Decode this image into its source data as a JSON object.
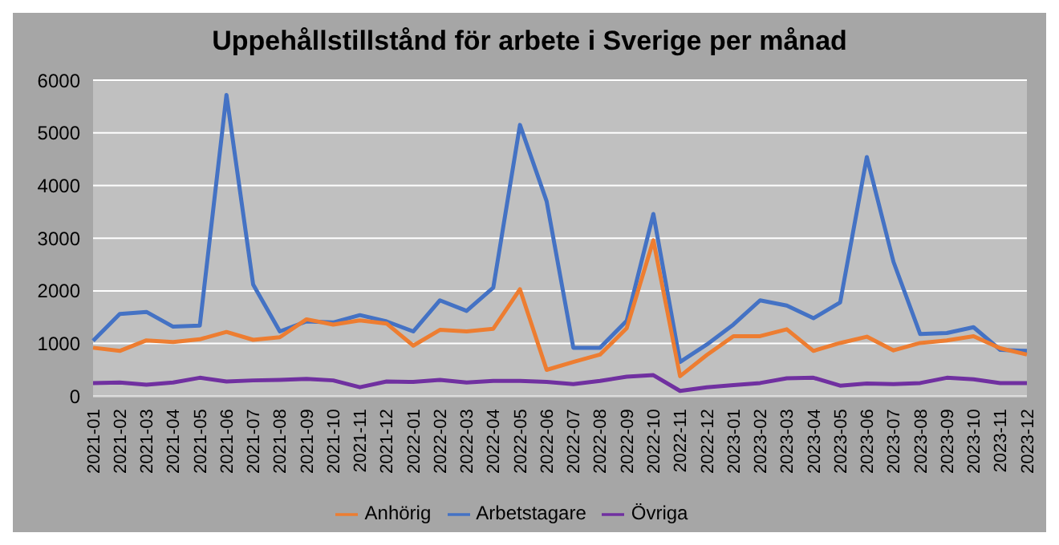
{
  "chart_data": {
    "type": "line",
    "title": "Uppehållstillstånd för arbete i Sverige per månad",
    "categories": [
      "2021-01",
      "2021-02",
      "2021-03",
      "2021-04",
      "2021-05",
      "2021-06",
      "2021-07",
      "2021-08",
      "2021-09",
      "2021-10",
      "2021-11",
      "2021-12",
      "2022-01",
      "2022-02",
      "2022-03",
      "2022-04",
      "2022-05",
      "2022-06",
      "2022-07",
      "2022-08",
      "2022-09",
      "2022-10",
      "2022-11",
      "2022-12",
      "2023-01",
      "2023-02",
      "2023-03",
      "2023-04",
      "2023-05",
      "2023-06",
      "2023-07",
      "2023-08",
      "2023-09",
      "2023-10",
      "2023-11",
      "2023-12"
    ],
    "series": [
      {
        "name": "Arbetstagare",
        "color": "#4472c4",
        "values": [
          1050,
          1560,
          1600,
          1320,
          1340,
          5720,
          2120,
          1230,
          1420,
          1400,
          1540,
          1420,
          1230,
          1820,
          1620,
          2060,
          5150,
          3700,
          920,
          920,
          1430,
          3460,
          650,
          980,
          1360,
          1820,
          1720,
          1480,
          1780,
          4540,
          2550,
          1180,
          1200,
          1310,
          880,
          860
        ]
      },
      {
        "name": "Anhörig",
        "color": "#ed7d31",
        "values": [
          920,
          860,
          1060,
          1030,
          1080,
          1220,
          1070,
          1120,
          1460,
          1360,
          1440,
          1380,
          960,
          1260,
          1230,
          1280,
          2030,
          500,
          650,
          790,
          1290,
          2960,
          380,
          780,
          1140,
          1140,
          1270,
          860,
          1010,
          1130,
          870,
          1010,
          1060,
          1140,
          910,
          790
        ]
      },
      {
        "name": "Övriga",
        "color": "#7030a0",
        "values": [
          250,
          260,
          220,
          260,
          350,
          280,
          300,
          310,
          330,
          300,
          170,
          280,
          270,
          310,
          260,
          290,
          290,
          270,
          230,
          290,
          370,
          400,
          100,
          170,
          210,
          250,
          340,
          350,
          200,
          240,
          230,
          250,
          350,
          320,
          250,
          250
        ]
      }
    ],
    "ylim": [
      0,
      6000
    ],
    "yticks": [
      0,
      1000,
      2000,
      3000,
      4000,
      5000,
      6000
    ],
    "grid": "y",
    "legend": "bottom",
    "marker": "none",
    "line_style": "solid"
  }
}
